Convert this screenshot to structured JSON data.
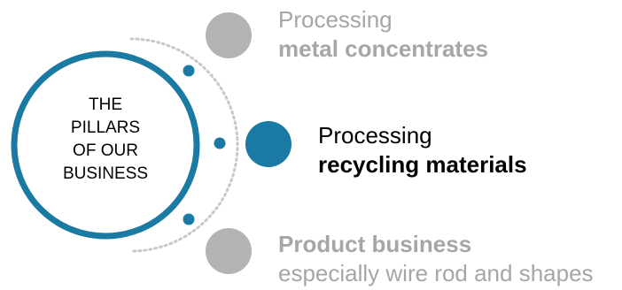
{
  "center": {
    "lines": [
      "THE",
      "PILLARS",
      "OF OUR",
      "BUSINESS"
    ]
  },
  "pillars": [
    {
      "line1": "Processing",
      "line2": "metal concentrates",
      "bold_line": 2,
      "active": false
    },
    {
      "line1": "Processing",
      "line2": "recycling materials",
      "bold_line": 2,
      "active": true
    },
    {
      "line1": "Product business",
      "line2": "especially wire rod and shapes",
      "bold_line": 1,
      "active": false
    }
  ],
  "colors": {
    "accent": "#1a7aa3",
    "inactive": "#b3b3b3",
    "active_text": "#000000",
    "inactive_text": "#a6a6a6",
    "dotted_arc": "#c8c8c8"
  }
}
